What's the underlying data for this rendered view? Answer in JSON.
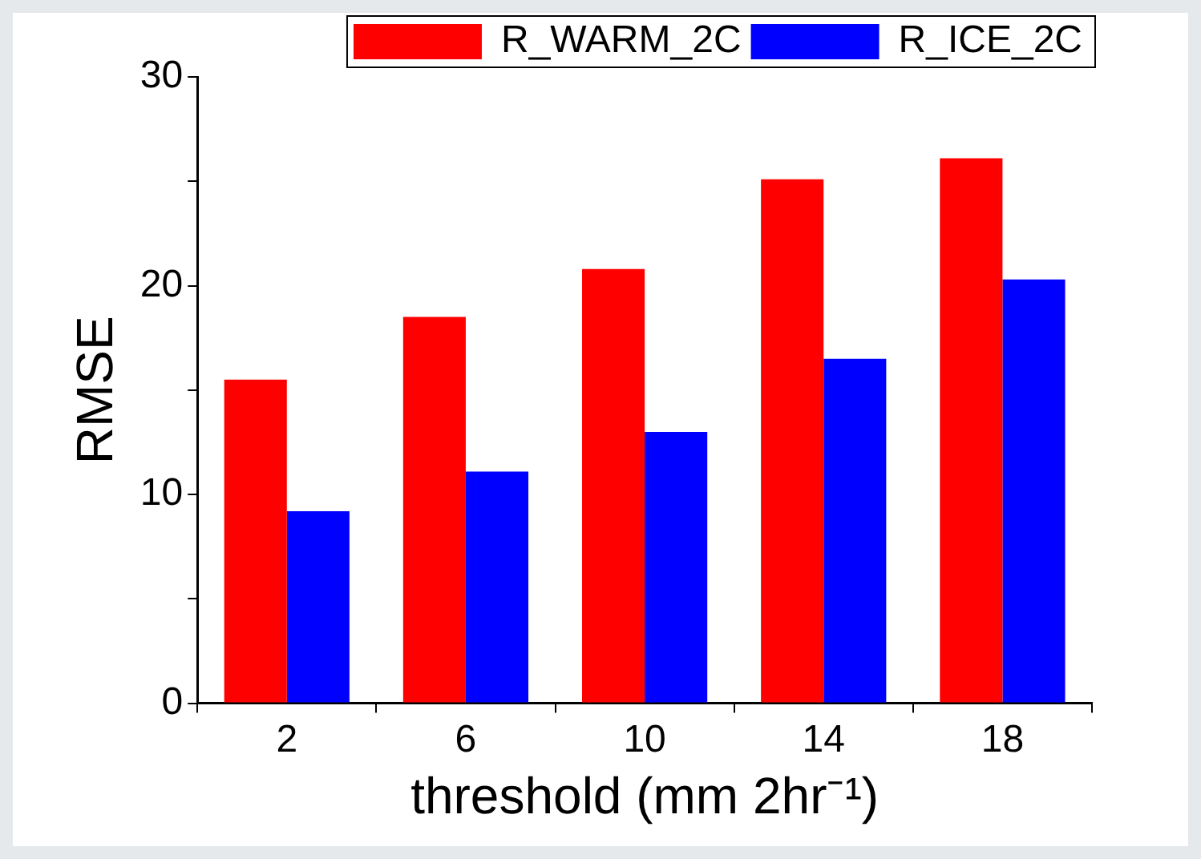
{
  "chart_data": {
    "type": "bar",
    "xlabel": "threshold (mm 2hr⁻¹)",
    "ylabel": "RMSE",
    "categories": [
      "2",
      "6",
      "10",
      "14",
      "18"
    ],
    "series": [
      {
        "name": "R_WARM_2C",
        "color": "#ff0000",
        "values": [
          15.5,
          18.5,
          20.8,
          25.1,
          26.1
        ]
      },
      {
        "name": "R_ICE_2C",
        "color": "#0000ff",
        "values": [
          9.2,
          11.1,
          13.0,
          16.5,
          20.3
        ]
      }
    ],
    "ylim": [
      0,
      30
    ],
    "yticks": [
      0,
      {
        "value": 5,
        "label": null
      },
      10,
      {
        "value": 15,
        "label": null
      },
      20,
      {
        "value": 25,
        "label": null
      },
      30
    ],
    "grid": false,
    "legend": "top right"
  }
}
